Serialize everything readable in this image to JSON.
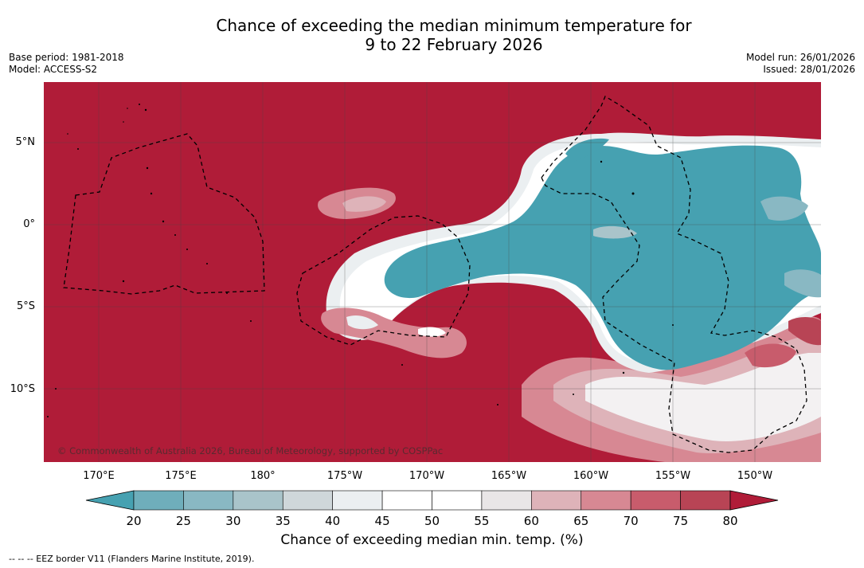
{
  "title_line1": "Chance of exceeding the median minimum temperature for",
  "title_line2": "9 to 22 February 2026",
  "base_period": "Base period: 1981-2018",
  "model": "Model: ACCESS-S2",
  "model_run": "Model run: 26/01/2026",
  "issued": "Issued: 28/01/2026",
  "credit": "© Commonwealth of Australia 2026, Bureau of Meteorology, supported by COSPPac",
  "lat_labels": [
    "5°N",
    "0°",
    "5°S",
    "10°S"
  ],
  "lon_labels": [
    "170°E",
    "175°E",
    "180°",
    "175°W",
    "170°W",
    "165°W",
    "160°W",
    "155°W",
    "150°W"
  ],
  "colorbar": {
    "title": "Chance of exceeding median min. temp. (%)",
    "ticks": [
      "20",
      "25",
      "30",
      "35",
      "40",
      "45",
      "50",
      "55",
      "60",
      "65",
      "70",
      "75",
      "80"
    ],
    "colors": [
      "#5fa7b4",
      "#6faebb",
      "#89b8c3",
      "#a9c4ca",
      "#cfd7da",
      "#ebeff1",
      "#ffffff",
      "#ffffff",
      "#e9e6e7",
      "#deb3b9",
      "#d78893",
      "#c85c6c",
      "#b84455"
    ],
    "low_color": "#46a1b1",
    "high_color": "#b01c38"
  },
  "eez_note": "-- -- -- EEZ border V11 (Flanders Marine Institute, 2019).",
  "colors": {
    "warm": "#b01c38",
    "cool": "#46a1b1"
  }
}
